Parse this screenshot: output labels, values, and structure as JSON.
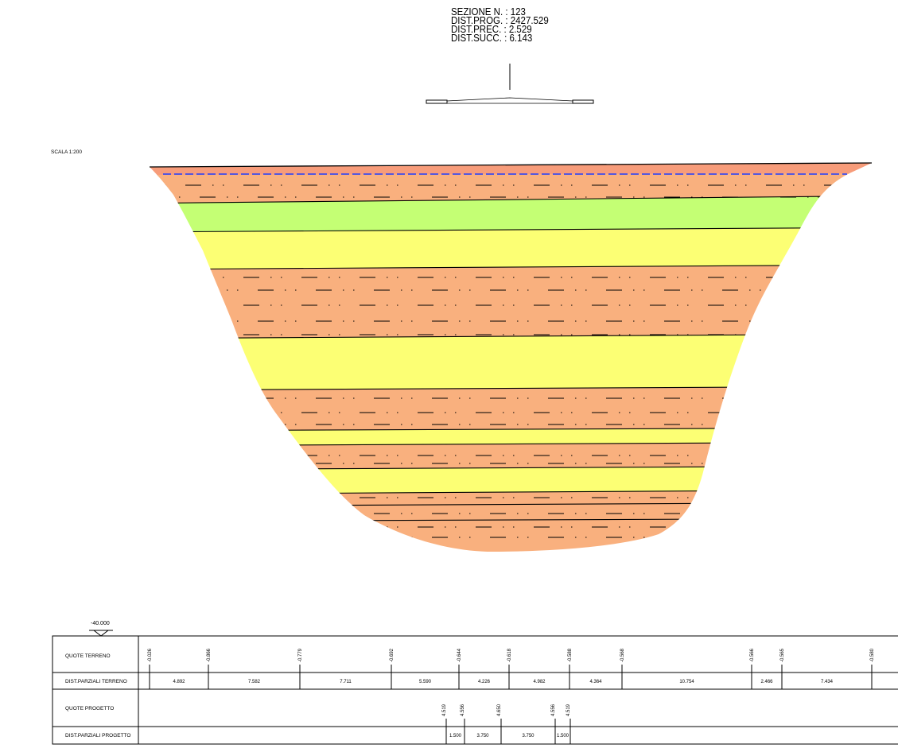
{
  "header": {
    "section_label": "SEZIONE N. : 123",
    "dist_prog_label": "DIST.PROG. : 2427.529",
    "dist_prec_label": "DIST.PREC. : 2.529",
    "dist_succ_label": "DIST.SUCC. : 6.143"
  },
  "scale_label": "SCALA 1:200",
  "reference_elevation": "-40.000",
  "colors": {
    "clay": "#f9b07e",
    "sand": "#fcff74",
    "silt_green": "#c4ff74",
    "top_band": "#f79c7a",
    "water_line": "#1e3cff",
    "outline": "#000000"
  },
  "layers": [
    {
      "material": "clay",
      "color": "#f9b07e",
      "hatch": true
    },
    {
      "material": "silt_green",
      "color": "#c4ff74",
      "hatch": false
    },
    {
      "material": "sand",
      "color": "#fcff74",
      "hatch": false
    },
    {
      "material": "clay",
      "color": "#f9b07e",
      "hatch": true
    },
    {
      "material": "sand",
      "color": "#fcff74",
      "hatch": false
    },
    {
      "material": "clay",
      "color": "#f9b07e",
      "hatch": true
    },
    {
      "material": "sand",
      "color": "#fcff74",
      "hatch": false
    },
    {
      "material": "clay",
      "color": "#f9b07e",
      "hatch": true
    },
    {
      "material": "sand",
      "color": "#fcff74",
      "hatch": false
    },
    {
      "material": "clay",
      "color": "#f9b07e",
      "hatch": true
    }
  ],
  "table": {
    "rows": [
      {
        "label": "QUOTE TERRENO"
      },
      {
        "label": "DIST.PARZIALI TERRENO"
      },
      {
        "label": "QUOTE PROGETTO"
      },
      {
        "label": "DIST.PARZIALI PROGETTO"
      }
    ],
    "quote_terreno": [
      "-0.026",
      "-0.866",
      "-0.779",
      "-0.692",
      "-0.644",
      "-0.618",
      "-0.588",
      "-0.568",
      "-0.566",
      "-0.565",
      "-0.580"
    ],
    "dist_parziali_terreno": [
      "4.892",
      "7.582",
      "7.711",
      "5.590",
      "4.226",
      "4.982",
      "4.364",
      "10.754",
      "2.466",
      "7.434"
    ],
    "quote_progetto": [
      "4.519",
      "4.556",
      "4.650",
      "4.556",
      "4.519"
    ],
    "dist_parziali_progetto": [
      "1.500",
      "3.750",
      "3.750",
      "1.500"
    ]
  }
}
